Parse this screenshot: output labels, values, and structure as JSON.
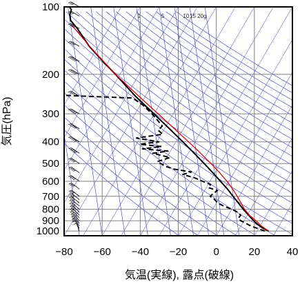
{
  "chart_data": {
    "type": "line",
    "subtype": "skew-T log-P emagram",
    "xlabel": "気温(実線), 露点(破線)",
    "ylabel": "気圧(hPa)",
    "x_ticks": [
      -80,
      -60,
      -40,
      -20,
      0,
      20,
      40
    ],
    "y_ticks": [
      100,
      200,
      300,
      400,
      500,
      600,
      700,
      800,
      900,
      1000
    ],
    "xlim": [
      -80,
      40
    ],
    "ylim_hpa": [
      1050,
      100
    ],
    "y_scale": "log",
    "grid": true,
    "mixing_ratio_labels": [
      "1",
      "5",
      "10",
      "15",
      "20g"
    ],
    "colors": {
      "temperature": "#000000",
      "dewpoint": "#000000",
      "parcel": "#dd0000",
      "background_lines": "#3333cc",
      "grid": "#808080"
    },
    "series": [
      {
        "name": "気温",
        "style": "solid",
        "points": [
          [
            1000,
            27.5
          ],
          [
            975,
            24.8
          ],
          [
            950,
            22.8
          ],
          [
            925,
            21.2
          ],
          [
            900,
            19.6
          ],
          [
            850,
            17.0
          ],
          [
            800,
            14.2
          ],
          [
            750,
            11.6
          ],
          [
            700,
            8.8
          ],
          [
            650,
            5.9
          ],
          [
            600,
            2.2
          ],
          [
            550,
            -1.8
          ],
          [
            500,
            -6.4
          ],
          [
            450,
            -11.6
          ],
          [
            400,
            -17.6
          ],
          [
            350,
            -24.6
          ],
          [
            300,
            -32.8
          ],
          [
            250,
            -42.6
          ],
          [
            200,
            -53.0
          ],
          [
            175,
            -59.6
          ],
          [
            150,
            -66.8
          ],
          [
            125,
            -73.0
          ],
          [
            115,
            -76.6
          ],
          [
            108,
            -77.0
          ],
          [
            103,
            -76.2
          ],
          [
            100,
            -77.2
          ]
        ]
      },
      {
        "name": "露点",
        "style": "dashed",
        "points": [
          [
            1000,
            25.5
          ],
          [
            975,
            21.8
          ],
          [
            950,
            18.2
          ],
          [
            925,
            15.6
          ],
          [
            900,
            12.8
          ],
          [
            875,
            11.6
          ],
          [
            850,
            12.8
          ],
          [
            825,
            11.2
          ],
          [
            800,
            8.2
          ],
          [
            775,
            4.0
          ],
          [
            750,
            0.8
          ],
          [
            720,
            -1.2
          ],
          [
            700,
            -3.2
          ],
          [
            680,
            -1.6
          ],
          [
            660,
            0.6
          ],
          [
            640,
            -4.2
          ],
          [
            620,
            -3.0
          ],
          [
            600,
            -7.2
          ],
          [
            580,
            -11.2
          ],
          [
            560,
            -17.6
          ],
          [
            545,
            -13.2
          ],
          [
            530,
            -22.0
          ],
          [
            515,
            -26.6
          ],
          [
            500,
            -29.2
          ],
          [
            490,
            -31.0
          ],
          [
            470,
            -24.4
          ],
          [
            450,
            -33.4
          ],
          [
            440,
            -25.4
          ],
          [
            430,
            -38.8
          ],
          [
            420,
            -28.8
          ],
          [
            410,
            -40.2
          ],
          [
            400,
            -30.2
          ],
          [
            385,
            -42.0
          ],
          [
            370,
            -28.2
          ],
          [
            355,
            -30.6
          ],
          [
            340,
            -28.4
          ],
          [
            320,
            -31.0
          ],
          [
            300,
            -33.8
          ],
          [
            275,
            -38.4
          ],
          [
            255,
            -44.0
          ],
          [
            250,
            -71.0
          ],
          [
            248,
            -80.0
          ]
        ]
      },
      {
        "name": "",
        "style": "solid-red",
        "points": [
          [
            1000,
            27.5
          ],
          [
            950,
            23.7
          ],
          [
            900,
            20.9
          ],
          [
            850,
            17.4
          ],
          [
            800,
            14.8
          ],
          [
            750,
            13.0
          ],
          [
            700,
            11.0
          ],
          [
            650,
            8.6
          ],
          [
            600,
            5.6
          ],
          [
            550,
            1.8
          ],
          [
            500,
            -2.8
          ],
          [
            450,
            -8.2
          ],
          [
            400,
            -14.6
          ],
          [
            350,
            -22.0
          ],
          [
            300,
            -30.6
          ],
          [
            250,
            -40.8
          ],
          [
            200,
            -53.0
          ],
          [
            150,
            -66.6
          ],
          [
            125,
            -74.4
          ],
          [
            120,
            -76.2
          ]
        ]
      }
    ],
    "wind_barbs": [
      [
        1000,
        200,
        10
      ],
      [
        975,
        210,
        10
      ],
      [
        950,
        215,
        15
      ],
      [
        925,
        220,
        15
      ],
      [
        900,
        225,
        20
      ],
      [
        875,
        230,
        20
      ],
      [
        850,
        235,
        20
      ],
      [
        825,
        235,
        25
      ],
      [
        800,
        240,
        25
      ],
      [
        775,
        240,
        25
      ],
      [
        750,
        245,
        25
      ],
      [
        725,
        245,
        30
      ],
      [
        700,
        250,
        30
      ],
      [
        650,
        250,
        30
      ],
      [
        600,
        255,
        35
      ],
      [
        550,
        255,
        35
      ],
      [
        500,
        260,
        40
      ],
      [
        450,
        260,
        45
      ],
      [
        400,
        265,
        45
      ],
      [
        350,
        265,
        50
      ],
      [
        300,
        270,
        55
      ],
      [
        250,
        270,
        55
      ],
      [
        200,
        270,
        50
      ],
      [
        175,
        270,
        45
      ],
      [
        150,
        270,
        40
      ],
      [
        125,
        270,
        35
      ],
      [
        110,
        270,
        30
      ],
      [
        100,
        270,
        25
      ]
    ]
  }
}
